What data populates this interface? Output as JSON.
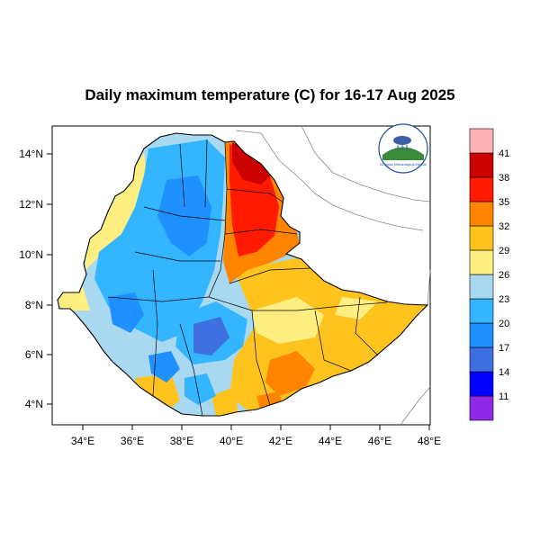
{
  "title": "Daily maximum temperature (C) for 16-17 Aug 2025",
  "map": {
    "x_ticks": [
      "34°E",
      "36°E",
      "38°E",
      "40°E",
      "42°E",
      "44°E",
      "46°E",
      "48°E"
    ],
    "y_ticks": [
      "14°N",
      "12°N",
      "10°N",
      "8°N",
      "6°N",
      "4°N"
    ],
    "lon_range": [
      33,
      48.2
    ],
    "lat_range": [
      3.2,
      15
    ]
  },
  "colorbar": {
    "labels": [
      "11",
      "14",
      "17",
      "20",
      "23",
      "26",
      "29",
      "32",
      "35",
      "38",
      "41"
    ],
    "colors": [
      "#8f29e6",
      "#0000ff",
      "#3f6fe0",
      "#1e90ff",
      "#33b5ff",
      "#a9d8f1",
      "#ffef82",
      "#ffc31e",
      "#ff8400",
      "#ff1a00",
      "#cd0000",
      "#ffb2b6"
    ]
  },
  "logo": {
    "text": "Ethiopian Meteorological Institute"
  }
}
